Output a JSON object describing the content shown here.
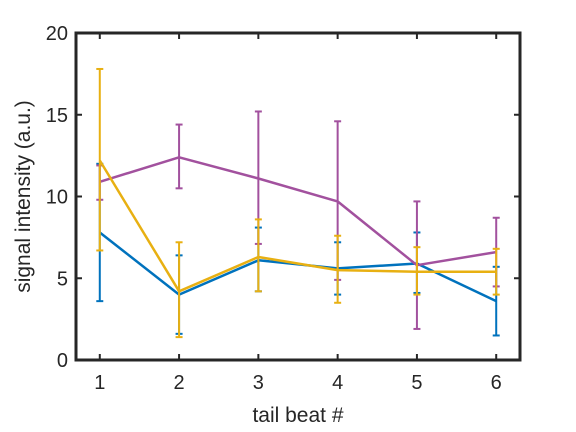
{
  "chart_data": {
    "type": "line",
    "title": "",
    "xlabel": "tail beat #",
    "ylabel": "signal intensity (a.u.)",
    "xlim": [
      0.7,
      6.3
    ],
    "ylim": [
      0,
      20
    ],
    "xticks": [
      1,
      2,
      3,
      4,
      5,
      6
    ],
    "yticks": [
      0,
      5,
      10,
      15,
      20
    ],
    "grid": false,
    "legend": "none",
    "x": [
      1,
      2,
      3,
      4,
      5,
      6
    ],
    "series": [
      {
        "color": "#0072BD",
        "values": [
          7.8,
          4.0,
          6.1,
          5.6,
          5.9,
          3.6
        ],
        "err_low": [
          3.6,
          1.6,
          4.2,
          4.0,
          4.1,
          1.5
        ],
        "err_high": [
          12.0,
          6.4,
          8.1,
          7.2,
          7.8,
          5.7
        ]
      },
      {
        "color": "#A2519E",
        "values": [
          10.9,
          12.4,
          11.1,
          9.7,
          5.8,
          6.6
        ],
        "err_low": [
          9.8,
          10.5,
          7.1,
          4.9,
          1.9,
          4.5
        ],
        "err_high": [
          11.9,
          14.4,
          15.2,
          14.6,
          9.7,
          8.7
        ]
      },
      {
        "color": "#E8B012",
        "values": [
          12.2,
          4.2,
          6.3,
          5.5,
          5.4,
          5.4
        ],
        "err_low": [
          6.7,
          1.4,
          4.2,
          3.5,
          4.0,
          4.0
        ],
        "err_high": [
          17.8,
          7.2,
          8.6,
          7.6,
          6.9,
          6.8
        ]
      }
    ]
  }
}
